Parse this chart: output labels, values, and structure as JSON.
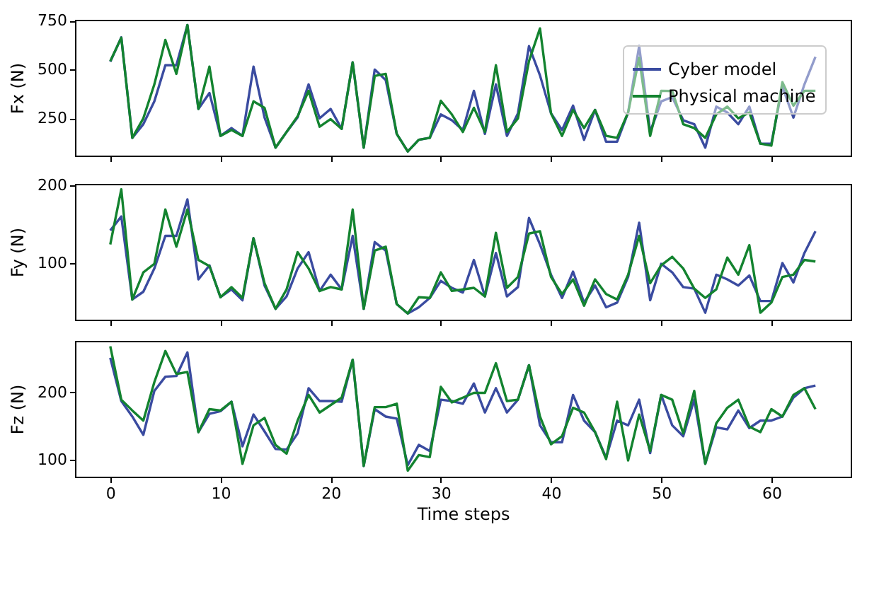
{
  "chart_data": [
    {
      "type": "line",
      "ylabel": "Fx (N)",
      "xlim": [
        -3.2,
        67.2
      ],
      "xticks": [
        0,
        10,
        20,
        30,
        40,
        50,
        60
      ],
      "ylim": [
        59,
        755
      ],
      "yticks": [
        250,
        500,
        750
      ],
      "tick_labels": "y",
      "legend": "top right",
      "grid": false,
      "x": [
        0,
        1,
        2,
        3,
        4,
        5,
        6,
        7,
        8,
        9,
        10,
        11,
        12,
        13,
        14,
        15,
        16,
        17,
        18,
        19,
        20,
        21,
        22,
        23,
        24,
        25,
        26,
        27,
        28,
        29,
        30,
        31,
        32,
        33,
        34,
        35,
        36,
        37,
        38,
        39,
        40,
        41,
        42,
        43,
        44,
        45,
        46,
        47,
        48,
        49,
        50,
        51,
        52,
        53,
        54,
        55,
        56,
        57,
        58,
        59,
        60,
        61,
        62,
        63,
        64
      ],
      "series": [
        {
          "name": "Cyber model",
          "color": "#3a4ba0",
          "values": [
            540,
            665,
            150,
            220,
            337,
            522,
            522,
            728,
            298,
            380,
            160,
            200,
            160,
            515,
            254,
            100,
            180,
            255,
            424,
            250,
            298,
            196,
            537,
            100,
            500,
            446,
            170,
            80,
            140,
            150,
            270,
            240,
            190,
            391,
            170,
            424,
            160,
            276,
            620,
            470,
            276,
            190,
            315,
            140,
            293,
            130,
            130,
            280,
            620,
            180,
            337,
            359,
            240,
            220,
            100,
            310,
            280,
            220,
            310,
            120,
            120,
            413,
            254,
            424,
            565
          ]
        },
        {
          "name": "Physical machine",
          "color": "#13832f",
          "values": [
            543,
            663,
            150,
            250,
            424,
            652,
            478,
            728,
            298,
            515,
            160,
            190,
            160,
            337,
            304,
            100,
            180,
            260,
            391,
            207,
            246,
            196,
            537,
            100,
            467,
            478,
            170,
            80,
            140,
            150,
            340,
            270,
            180,
            304,
            180,
            522,
            180,
            250,
            543,
            711,
            276,
            160,
            293,
            200,
            293,
            160,
            150,
            280,
            560,
            160,
            391,
            390,
            220,
            200,
            150,
            270,
            310,
            250,
            280,
            120,
            110,
            435,
            315,
            391,
            391
          ]
        }
      ]
    },
    {
      "type": "line",
      "ylabel": "Fy (N)",
      "xlim": [
        -3.2,
        67.2
      ],
      "xticks": [
        0,
        10,
        20,
        30,
        40,
        50,
        60
      ],
      "ylim": [
        27,
        202
      ],
      "yticks": [
        100,
        200
      ],
      "tick_labels": "y",
      "grid": false,
      "x": [
        0,
        1,
        2,
        3,
        4,
        5,
        6,
        7,
        8,
        9,
        10,
        11,
        12,
        13,
        14,
        15,
        16,
        17,
        18,
        19,
        20,
        21,
        22,
        23,
        24,
        25,
        26,
        27,
        28,
        29,
        30,
        31,
        32,
        33,
        34,
        35,
        36,
        37,
        38,
        39,
        40,
        41,
        42,
        43,
        44,
        45,
        46,
        47,
        48,
        49,
        50,
        51,
        52,
        53,
        54,
        55,
        56,
        57,
        58,
        59,
        60,
        61,
        62,
        63,
        64
      ],
      "series": [
        {
          "color": "#3a4ba0",
          "values": [
            142,
            160,
            53,
            63,
            93,
            135,
            135,
            182,
            79,
            97,
            56,
            66,
            52,
            132,
            71,
            41,
            57,
            93,
            114,
            64,
            85,
            66,
            135,
            41,
            127,
            116,
            47,
            35,
            43,
            55,
            77,
            68,
            62,
            104,
            57,
            113,
            57,
            69,
            158,
            124,
            85,
            55,
            89,
            49,
            71,
            43,
            49,
            82,
            152,
            52,
            99,
            88,
            69,
            67,
            36,
            85,
            79,
            71,
            84,
            51,
            51,
            100,
            75,
            113,
            141
          ]
        },
        {
          "color": "#13832f",
          "values": [
            124,
            195,
            53,
            88,
            99,
            169,
            121,
            169,
            104,
            96,
            56,
            69,
            55,
            132,
            74,
            41,
            66,
            114,
            93,
            64,
            69,
            66,
            169,
            41,
            116,
            121,
            47,
            35,
            56,
            55,
            88,
            64,
            66,
            68,
            57,
            139,
            68,
            82,
            138,
            141,
            82,
            60,
            79,
            45,
            79,
            60,
            53,
            85,
            135,
            74,
            97,
            108,
            93,
            67,
            55,
            66,
            107,
            85,
            123,
            36,
            49,
            82,
            85,
            104,
            102
          ]
        }
      ]
    },
    {
      "type": "line",
      "ylabel": "Fz (N)",
      "xlabel": "Time steps",
      "xlim": [
        -3.2,
        67.2
      ],
      "xticks": [
        0,
        10,
        20,
        30,
        40,
        50,
        60
      ],
      "ylim": [
        75,
        276
      ],
      "yticks": [
        100,
        200
      ],
      "grid": false,
      "x": [
        0,
        1,
        2,
        3,
        4,
        5,
        6,
        7,
        8,
        9,
        10,
        11,
        12,
        13,
        14,
        15,
        16,
        17,
        18,
        19,
        20,
        21,
        22,
        23,
        24,
        25,
        26,
        27,
        28,
        29,
        30,
        31,
        32,
        33,
        34,
        35,
        36,
        37,
        38,
        39,
        40,
        41,
        42,
        43,
        44,
        45,
        46,
        47,
        48,
        49,
        50,
        51,
        52,
        53,
        54,
        55,
        56,
        57,
        58,
        59,
        60,
        61,
        62,
        63,
        64
      ],
      "series": [
        {
          "color": "#3a4ba0",
          "values": [
            251,
            187,
            164,
            137,
            202,
            223,
            224,
            259,
            141,
            168,
            172,
            186,
            120,
            167,
            142,
            116,
            115,
            139,
            206,
            187,
            187,
            186,
            248,
            91,
            175,
            164,
            161,
            92,
            122,
            113,
            189,
            187,
            183,
            213,
            170,
            206,
            170,
            189,
            240,
            151,
            126,
            126,
            196,
            158,
            141,
            103,
            158,
            151,
            189,
            110,
            196,
            151,
            135,
            189,
            94,
            148,
            145,
            173,
            147,
            158,
            158,
            164,
            192,
            206,
            210
          ]
        },
        {
          "color": "#13832f",
          "values": [
            268,
            189,
            173,
            158,
            215,
            261,
            227,
            230,
            141,
            175,
            173,
            186,
            94,
            151,
            162,
            122,
            109,
            158,
            196,
            170,
            181,
            192,
            248,
            91,
            178,
            178,
            183,
            84,
            107,
            104,
            208,
            185,
            192,
            199,
            199,
            243,
            187,
            189,
            240,
            164,
            123,
            135,
            177,
            170,
            141,
            101,
            186,
            99,
            167,
            113,
            196,
            189,
            139,
            202,
            94,
            154,
            177,
            189,
            149,
            141,
            175,
            164,
            196,
            206,
            175
          ]
        }
      ]
    }
  ]
}
